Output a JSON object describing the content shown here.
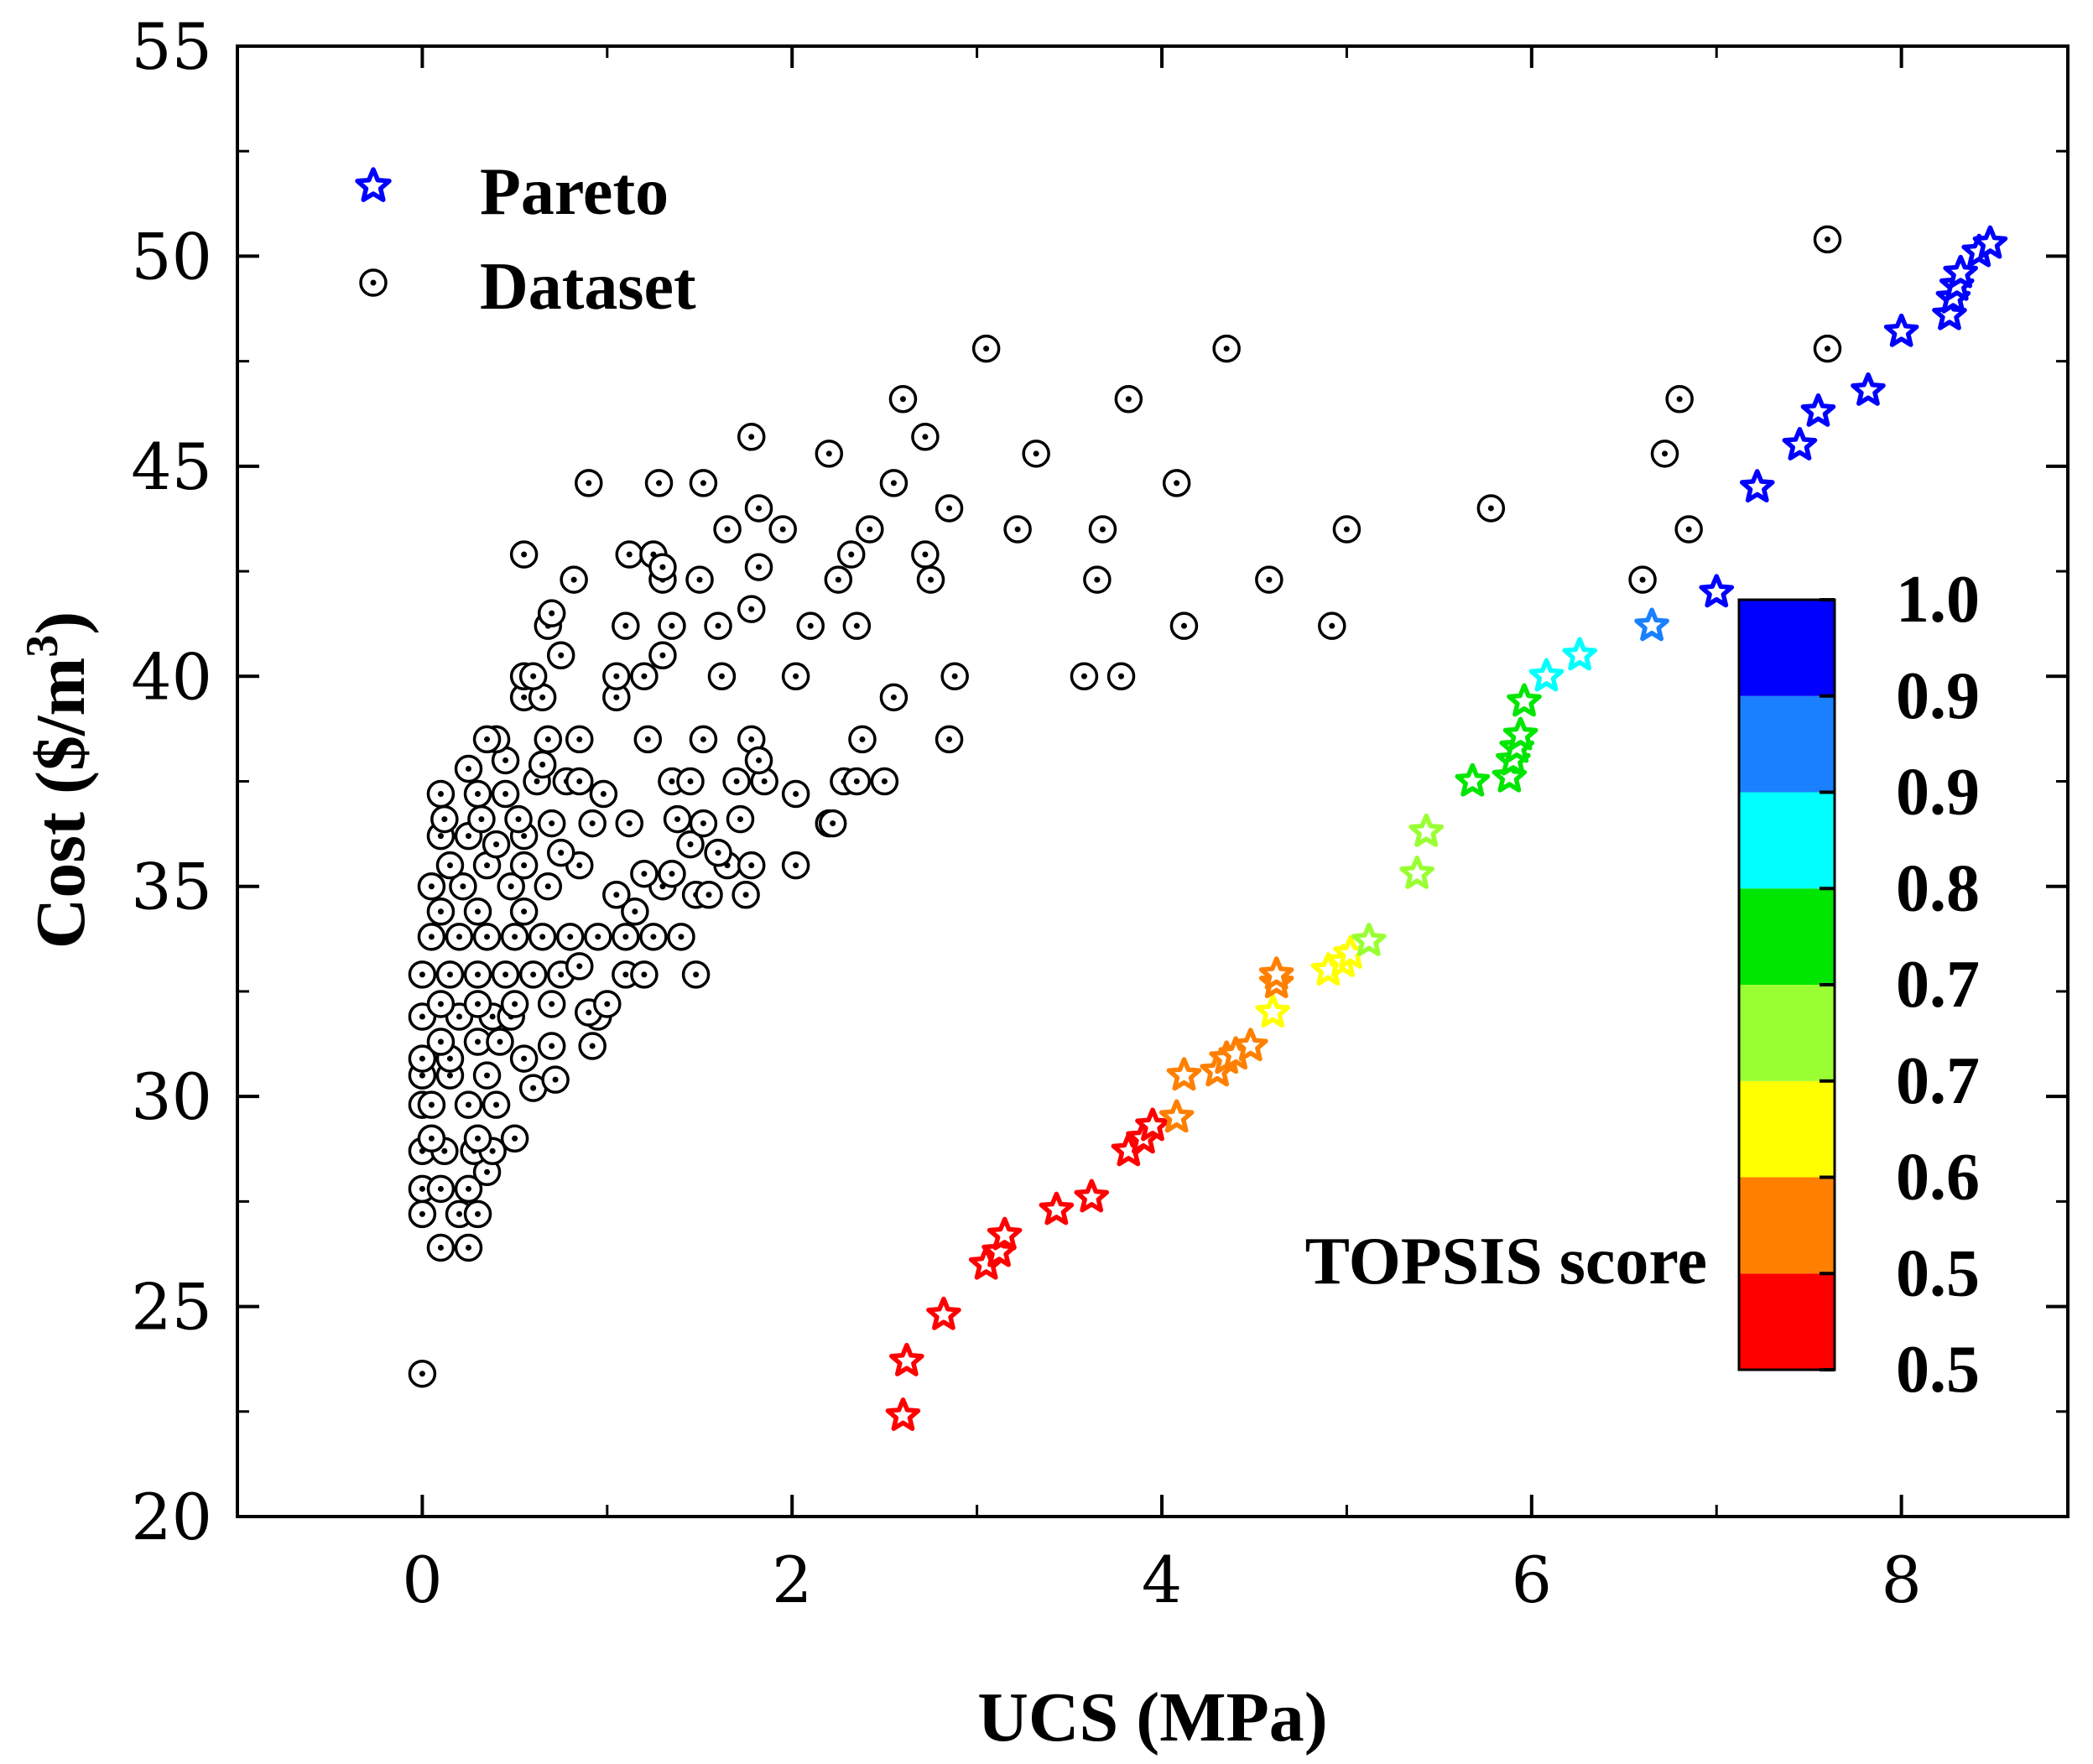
{
  "chart_data": {
    "type": "scatter",
    "xlabel": "UCS (MPa)",
    "ylabel_main": "Cost ($/m",
    "ylabel_sup": "3",
    "ylabel_close": ")",
    "xlim": [
      -1,
      8.9
    ],
    "ylim": [
      20,
      55
    ],
    "xticks": [
      0,
      2,
      4,
      6,
      8
    ],
    "yticks": [
      20,
      25,
      30,
      35,
      40,
      45,
      50,
      55
    ],
    "legend": [
      {
        "name": "Pareto",
        "marker": "star"
      },
      {
        "name": "Dataset",
        "marker": "circle-dot"
      }
    ],
    "colorbar": {
      "title": "TOPSIS score",
      "tick_labels": [
        "0.5",
        "0.5",
        "0.6",
        "0.7",
        "0.7",
        "0.8",
        "0.9",
        "0.9",
        "1.0"
      ],
      "colors": [
        "#ff0000",
        "#ff8000",
        "#ffff00",
        "#99ff33",
        "#00e600",
        "#00ffff",
        "#1a80ff",
        "#0000ff"
      ]
    },
    "series": [
      {
        "name": "Pareto",
        "points": [
          [
            2.6,
            22.4,
            0
          ],
          [
            2.62,
            23.7,
            0
          ],
          [
            2.82,
            24.8,
            0
          ],
          [
            3.05,
            26.0,
            0
          ],
          [
            3.12,
            26.3,
            0
          ],
          [
            3.15,
            26.7,
            0
          ],
          [
            3.43,
            27.3,
            0
          ],
          [
            3.62,
            27.6,
            0
          ],
          [
            3.82,
            28.7,
            0
          ],
          [
            3.9,
            29.0,
            0
          ],
          [
            3.95,
            29.3,
            0
          ],
          [
            4.08,
            29.5,
            1
          ],
          [
            4.12,
            30.5,
            1
          ],
          [
            4.3,
            30.6,
            1
          ],
          [
            4.35,
            30.9,
            1
          ],
          [
            4.4,
            31.0,
            1
          ],
          [
            4.48,
            31.2,
            1
          ],
          [
            4.6,
            32.0,
            2
          ],
          [
            4.62,
            32.7,
            1
          ],
          [
            4.62,
            32.9,
            1
          ],
          [
            4.9,
            33.0,
            2
          ],
          [
            4.98,
            33.2,
            2
          ],
          [
            5.02,
            33.4,
            2
          ],
          [
            5.12,
            33.7,
            3
          ],
          [
            5.38,
            35.3,
            3
          ],
          [
            5.43,
            36.3,
            3
          ],
          [
            5.68,
            37.5,
            4
          ],
          [
            5.88,
            37.6,
            4
          ],
          [
            5.9,
            38.0,
            4
          ],
          [
            5.92,
            38.3,
            4
          ],
          [
            5.94,
            38.6,
            4
          ],
          [
            5.96,
            39.4,
            4
          ],
          [
            6.08,
            40.0,
            5
          ],
          [
            6.26,
            40.5,
            5
          ],
          [
            6.65,
            41.2,
            6
          ],
          [
            7.0,
            42.0,
            7
          ],
          [
            7.22,
            44.5,
            7
          ],
          [
            7.45,
            45.5,
            7
          ],
          [
            7.55,
            46.3,
            7
          ],
          [
            7.82,
            46.8,
            7
          ],
          [
            8.0,
            48.2,
            7
          ],
          [
            8.26,
            48.6,
            7
          ],
          [
            8.28,
            49.0,
            7
          ],
          [
            8.3,
            49.3,
            7
          ],
          [
            8.32,
            49.6,
            7
          ],
          [
            8.42,
            50.1,
            7
          ],
          [
            8.48,
            50.3,
            7
          ]
        ]
      },
      {
        "name": "Dataset",
        "points": [
          [
            0.0,
            23.4
          ],
          [
            0.1,
            26.4
          ],
          [
            0.25,
            26.4
          ],
          [
            0.2,
            27.2
          ],
          [
            0.3,
            27.2
          ],
          [
            0.0,
            27.2
          ],
          [
            0.0,
            27.8
          ],
          [
            0.1,
            27.8
          ],
          [
            0.25,
            27.8
          ],
          [
            0.35,
            28.2
          ],
          [
            0.0,
            28.7
          ],
          [
            0.12,
            28.7
          ],
          [
            0.28,
            28.7
          ],
          [
            0.38,
            28.7
          ],
          [
            0.05,
            29.0
          ],
          [
            0.3,
            29.0
          ],
          [
            0.5,
            29.0
          ],
          [
            0.0,
            29.8
          ],
          [
            0.05,
            29.8
          ],
          [
            0.25,
            29.8
          ],
          [
            0.4,
            29.8
          ],
          [
            0.6,
            30.2
          ],
          [
            0.72,
            30.4
          ],
          [
            0.0,
            30.5
          ],
          [
            0.15,
            30.5
          ],
          [
            0.35,
            30.5
          ],
          [
            0.0,
            30.9
          ],
          [
            0.15,
            30.9
          ],
          [
            0.55,
            30.9
          ],
          [
            0.7,
            31.2
          ],
          [
            0.92,
            31.2
          ],
          [
            0.1,
            31.3
          ],
          [
            0.3,
            31.3
          ],
          [
            0.42,
            31.3
          ],
          [
            0.0,
            31.9
          ],
          [
            0.2,
            31.9
          ],
          [
            0.38,
            31.9
          ],
          [
            0.48,
            31.9
          ],
          [
            0.95,
            31.9
          ],
          [
            0.9,
            32.0
          ],
          [
            0.1,
            32.2
          ],
          [
            0.3,
            32.2
          ],
          [
            0.5,
            32.2
          ],
          [
            0.7,
            32.2
          ],
          [
            1.0,
            32.2
          ],
          [
            0.0,
            32.9
          ],
          [
            0.15,
            32.9
          ],
          [
            0.3,
            32.9
          ],
          [
            0.45,
            32.9
          ],
          [
            0.6,
            32.9
          ],
          [
            0.75,
            32.9
          ],
          [
            0.85,
            33.1
          ],
          [
            1.1,
            32.9
          ],
          [
            1.2,
            32.9
          ],
          [
            1.48,
            32.9
          ],
          [
            0.05,
            33.8
          ],
          [
            0.2,
            33.8
          ],
          [
            0.35,
            33.8
          ],
          [
            0.5,
            33.8
          ],
          [
            0.65,
            33.8
          ],
          [
            0.8,
            33.8
          ],
          [
            0.95,
            33.8
          ],
          [
            1.1,
            33.8
          ],
          [
            1.25,
            33.8
          ],
          [
            1.4,
            33.8
          ],
          [
            0.1,
            34.4
          ],
          [
            0.3,
            34.4
          ],
          [
            0.55,
            34.4
          ],
          [
            1.15,
            34.4
          ],
          [
            0.05,
            35.0
          ],
          [
            0.22,
            35.0
          ],
          [
            0.48,
            35.0
          ],
          [
            0.68,
            35.0
          ],
          [
            1.05,
            34.8
          ],
          [
            1.3,
            35.0
          ],
          [
            1.48,
            34.8
          ],
          [
            1.55,
            34.8
          ],
          [
            1.75,
            34.8
          ],
          [
            0.15,
            35.5
          ],
          [
            0.35,
            35.5
          ],
          [
            0.55,
            35.5
          ],
          [
            0.85,
            35.5
          ],
          [
            1.2,
            35.3
          ],
          [
            1.35,
            35.3
          ],
          [
            1.65,
            35.5
          ],
          [
            1.78,
            35.5
          ],
          [
            2.02,
            35.5
          ],
          [
            0.1,
            36.2
          ],
          [
            0.25,
            36.2
          ],
          [
            0.4,
            36.0
          ],
          [
            0.55,
            36.2
          ],
          [
            0.75,
            35.8
          ],
          [
            1.45,
            36.0
          ],
          [
            1.6,
            35.8
          ],
          [
            0.12,
            36.6
          ],
          [
            0.32,
            36.6
          ],
          [
            0.52,
            36.6
          ],
          [
            0.7,
            36.5
          ],
          [
            0.92,
            36.5
          ],
          [
            1.12,
            36.5
          ],
          [
            1.38,
            36.6
          ],
          [
            1.52,
            36.5
          ],
          [
            1.72,
            36.6
          ],
          [
            2.2,
            36.5
          ],
          [
            2.22,
            36.5
          ],
          [
            0.1,
            37.2
          ],
          [
            0.3,
            37.2
          ],
          [
            0.45,
            37.2
          ],
          [
            0.62,
            37.5
          ],
          [
            0.78,
            37.5
          ],
          [
            0.85,
            37.5
          ],
          [
            0.98,
            37.2
          ],
          [
            1.35,
            37.5
          ],
          [
            1.45,
            37.5
          ],
          [
            1.7,
            37.5
          ],
          [
            1.85,
            37.5
          ],
          [
            2.02,
            37.2
          ],
          [
            2.28,
            37.5
          ],
          [
            2.35,
            37.5
          ],
          [
            2.5,
            37.5
          ],
          [
            0.25,
            37.8
          ],
          [
            0.45,
            38.0
          ],
          [
            0.65,
            37.9
          ],
          [
            0.4,
            38.5
          ],
          [
            0.35,
            38.5
          ],
          [
            0.68,
            38.5
          ],
          [
            0.85,
            38.5
          ],
          [
            1.22,
            38.5
          ],
          [
            1.52,
            38.5
          ],
          [
            1.78,
            38.5
          ],
          [
            1.82,
            38.0
          ],
          [
            2.38,
            38.5
          ],
          [
            2.85,
            38.5
          ],
          [
            0.55,
            39.5
          ],
          [
            0.65,
            39.5
          ],
          [
            1.05,
            39.5
          ],
          [
            2.55,
            39.5
          ],
          [
            0.55,
            40.0
          ],
          [
            0.6,
            40.0
          ],
          [
            1.05,
            40.0
          ],
          [
            1.2,
            40.0
          ],
          [
            1.62,
            40.0
          ],
          [
            2.02,
            40.0
          ],
          [
            2.88,
            40.0
          ],
          [
            3.58,
            40.0
          ],
          [
            3.78,
            40.0
          ],
          [
            0.75,
            40.5
          ],
          [
            1.3,
            40.5
          ],
          [
            0.68,
            41.2
          ],
          [
            1.1,
            41.2
          ],
          [
            1.35,
            41.2
          ],
          [
            1.6,
            41.2
          ],
          [
            2.1,
            41.2
          ],
          [
            2.35,
            41.2
          ],
          [
            4.12,
            41.2
          ],
          [
            4.92,
            41.2
          ],
          [
            0.7,
            41.5
          ],
          [
            1.78,
            41.6
          ],
          [
            0.82,
            42.3
          ],
          [
            1.3,
            42.3
          ],
          [
            1.5,
            42.3
          ],
          [
            2.25,
            42.3
          ],
          [
            2.75,
            42.3
          ],
          [
            3.65,
            42.3
          ],
          [
            4.58,
            42.3
          ],
          [
            6.6,
            42.3
          ],
          [
            0.55,
            42.9
          ],
          [
            1.12,
            42.9
          ],
          [
            1.25,
            42.9
          ],
          [
            1.3,
            42.6
          ],
          [
            1.82,
            42.6
          ],
          [
            2.32,
            42.9
          ],
          [
            2.72,
            42.9
          ],
          [
            1.65,
            43.5
          ],
          [
            1.95,
            43.5
          ],
          [
            2.42,
            43.5
          ],
          [
            3.22,
            43.5
          ],
          [
            3.68,
            43.5
          ],
          [
            5.0,
            43.5
          ],
          [
            6.85,
            43.5
          ],
          [
            1.82,
            44.0
          ],
          [
            2.85,
            44.0
          ],
          [
            5.78,
            44.0
          ],
          [
            0.9,
            44.6
          ],
          [
            1.28,
            44.6
          ],
          [
            1.52,
            44.6
          ],
          [
            2.55,
            44.6
          ],
          [
            4.08,
            44.6
          ],
          [
            2.2,
            45.3
          ],
          [
            3.32,
            45.3
          ],
          [
            6.72,
            45.3
          ],
          [
            1.78,
            45.7
          ],
          [
            2.72,
            45.7
          ],
          [
            2.6,
            46.6
          ],
          [
            3.82,
            46.6
          ],
          [
            6.8,
            46.6
          ],
          [
            3.05,
            47.8
          ],
          [
            4.35,
            47.8
          ],
          [
            7.6,
            47.8
          ],
          [
            7.6,
            50.4
          ]
        ]
      }
    ]
  }
}
